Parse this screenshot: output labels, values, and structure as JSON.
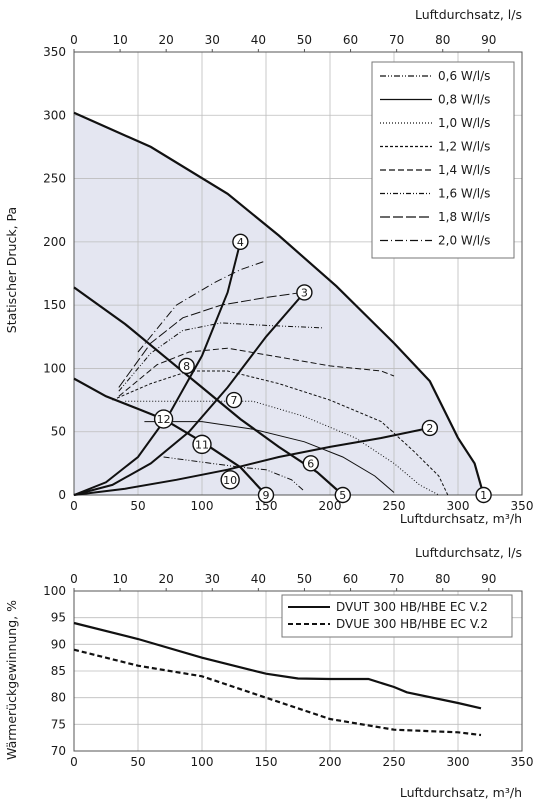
{
  "chart_data": [
    {
      "type": "line",
      "xlabel": "Luftdurchsatz, m³/h",
      "x2label": "Luftdurchsatz, l/s",
      "ylabel": "Statischer Druck, Pa",
      "xlim": [
        0,
        350
      ],
      "x2lim": [
        0,
        97.2
      ],
      "ylim": [
        0,
        350
      ],
      "xticks": [
        "0",
        "50",
        "100",
        "150",
        "200",
        "250",
        "300",
        "350"
      ],
      "x2ticks": [
        "0",
        "10",
        "20",
        "30",
        "40",
        "50",
        "60",
        "70",
        "80",
        "90"
      ],
      "yticks": [
        "0",
        "50",
        "100",
        "150",
        "200",
        "250",
        "300",
        "350"
      ],
      "grid": true,
      "legend_position": "top-right",
      "envelope": [
        [
          0,
          302
        ],
        [
          60,
          275
        ],
        [
          120,
          238
        ],
        [
          160,
          205
        ],
        [
          205,
          165
        ],
        [
          250,
          120
        ],
        [
          278,
          90
        ],
        [
          300,
          45
        ],
        [
          313,
          25
        ],
        [
          320,
          0
        ],
        [
          0,
          0
        ]
      ],
      "fan_curves": [
        {
          "values": [
            [
              0,
              302
            ],
            [
              60,
              275
            ],
            [
              120,
              238
            ],
            [
              160,
              205
            ],
            [
              205,
              165
            ],
            [
              250,
              120
            ],
            [
              278,
              90
            ],
            [
              300,
              45
            ],
            [
              313,
              25
            ],
            [
              320,
              0
            ]
          ]
        },
        {
          "values": [
            [
              0,
              164
            ],
            [
              40,
              135
            ],
            [
              70,
              110
            ],
            [
              100,
              85
            ],
            [
              130,
              60
            ],
            [
              160,
              38
            ],
            [
              190,
              18
            ],
            [
              210,
              0
            ]
          ]
        },
        {
          "values": [
            [
              0,
              92
            ],
            [
              25,
              78
            ],
            [
              50,
              68
            ],
            [
              70,
              60
            ],
            [
              100,
              42
            ],
            [
              130,
              22
            ],
            [
              150,
              0
            ]
          ]
        }
      ],
      "system_curves": [
        {
          "values": [
            [
              0,
              0
            ],
            [
              40,
              5
            ],
            [
              80,
              12
            ],
            [
              120,
              20
            ],
            [
              160,
              30
            ],
            [
              200,
              38
            ],
            [
              240,
              45
            ],
            [
              278,
              53
            ]
          ]
        },
        {
          "values": [
            [
              0,
              0
            ],
            [
              30,
              8
            ],
            [
              60,
              25
            ],
            [
              90,
              50
            ],
            [
              120,
              85
            ],
            [
              150,
              125
            ],
            [
              180,
              160
            ]
          ]
        },
        {
          "values": [
            [
              0,
              0
            ],
            [
              25,
              10
            ],
            [
              50,
              30
            ],
            [
              75,
              65
            ],
            [
              100,
              110
            ],
            [
              120,
              160
            ],
            [
              130,
              200
            ]
          ]
        }
      ],
      "series": [
        {
          "name": "0,6 W/l/s",
          "dash": "6 2 1 2 1 2",
          "values": [
            [
              70,
              30
            ],
            [
              100,
              26
            ],
            [
              130,
              22
            ],
            [
              150,
              20
            ],
            [
              170,
              12
            ],
            [
              180,
              3
            ]
          ]
        },
        {
          "name": "0,8 W/l/s",
          "dash": "",
          "values": [
            [
              55,
              58
            ],
            [
              80,
              58
            ],
            [
              100,
              58
            ],
            [
              140,
              52
            ],
            [
              180,
              42
            ],
            [
              210,
              30
            ],
            [
              235,
              15
            ],
            [
              250,
              2
            ]
          ]
        },
        {
          "name": "1,0 W/l/s",
          "dash": "1 2",
          "values": [
            [
              40,
              74
            ],
            [
              70,
              74
            ],
            [
              100,
              74
            ],
            [
              140,
              74
            ],
            [
              180,
              62
            ],
            [
              220,
              45
            ],
            [
              250,
              25
            ],
            [
              270,
              8
            ],
            [
              285,
              0
            ]
          ]
        },
        {
          "name": "1,2 W/l/s",
          "dash": "3 2",
          "values": [
            [
              30,
              75
            ],
            [
              60,
              88
            ],
            [
              90,
              98
            ],
            [
              120,
              98
            ],
            [
              160,
              88
            ],
            [
              200,
              75
            ],
            [
              240,
              58
            ],
            [
              265,
              35
            ],
            [
              285,
              15
            ],
            [
              292,
              0
            ]
          ]
        },
        {
          "name": "1,4 W/l/s",
          "dash": "6 3",
          "values": [
            [
              35,
              78
            ],
            [
              65,
              103
            ],
            [
              90,
              113
            ],
            [
              120,
              116
            ],
            [
              160,
              109
            ],
            [
              200,
              102
            ],
            [
              240,
              98
            ],
            [
              250,
              94
            ]
          ]
        },
        {
          "name": "1,6 W/l/s",
          "dash": "5 2 1 2 1 2",
          "values": [
            [
              35,
              82
            ],
            [
              60,
              112
            ],
            [
              85,
              130
            ],
            [
              115,
              136
            ],
            [
              150,
              134
            ],
            [
              195,
              132
            ]
          ]
        },
        {
          "name": "1,8 W/l/s",
          "dash": "10 3",
          "values": [
            [
              35,
              85
            ],
            [
              60,
              120
            ],
            [
              85,
              140
            ],
            [
              115,
              150
            ],
            [
              150,
              156
            ],
            [
              178,
              160
            ]
          ]
        },
        {
          "name": "2,0 W/l/s",
          "dash": "8 3 1 3",
          "values": [
            [
              50,
              113
            ],
            [
              80,
              150
            ],
            [
              110,
              168
            ],
            [
              130,
              178
            ],
            [
              150,
              185
            ]
          ]
        }
      ],
      "points": [
        {
          "label": "1",
          "x": 320,
          "y": 0
        },
        {
          "label": "2",
          "x": 278,
          "y": 53
        },
        {
          "label": "3",
          "x": 180,
          "y": 160
        },
        {
          "label": "4",
          "x": 130,
          "y": 200
        },
        {
          "label": "5",
          "x": 210,
          "y": 0
        },
        {
          "label": "6",
          "x": 185,
          "y": 25
        },
        {
          "label": "7",
          "x": 125,
          "y": 75
        },
        {
          "label": "8",
          "x": 88,
          "y": 102
        },
        {
          "label": "9",
          "x": 150,
          "y": 0
        },
        {
          "label": "10",
          "x": 122,
          "y": 12
        },
        {
          "label": "11",
          "x": 100,
          "y": 40
        },
        {
          "label": "12",
          "x": 70,
          "y": 60
        }
      ]
    },
    {
      "type": "line",
      "xlabel": "Luftdurchsatz, m³/h",
      "x2label": "Luftdurchsatz, l/s",
      "ylabel": "Wärmerückgewinnung, %",
      "xlim": [
        0,
        350
      ],
      "x2lim": [
        0,
        97.2
      ],
      "ylim": [
        70,
        100
      ],
      "xticks": [
        "0",
        "50",
        "100",
        "150",
        "200",
        "250",
        "300",
        "350"
      ],
      "x2ticks": [
        "0",
        "10",
        "20",
        "30",
        "40",
        "50",
        "60",
        "70",
        "80",
        "90"
      ],
      "yticks": [
        "70",
        "75",
        "80",
        "85",
        "90",
        "95",
        "100"
      ],
      "grid": true,
      "legend_position": "top-right",
      "series": [
        {
          "name": "DVUT 300 HB/HBE EC V.2",
          "dash": "",
          "values": [
            [
              0,
              94
            ],
            [
              50,
              91
            ],
            [
              100,
              87.5
            ],
            [
              150,
              84.5
            ],
            [
              175,
              83.6
            ],
            [
              200,
              83.5
            ],
            [
              230,
              83.5
            ],
            [
              250,
              82
            ],
            [
              260,
              81
            ],
            [
              300,
              79
            ],
            [
              318,
              78
            ]
          ]
        },
        {
          "name": "DVUE 300 HB/HBE EC V.2",
          "dash": "5 3",
          "values": [
            [
              0,
              89
            ],
            [
              50,
              86
            ],
            [
              100,
              84
            ],
            [
              150,
              80
            ],
            [
              200,
              76
            ],
            [
              250,
              74
            ],
            [
              300,
              73.5
            ],
            [
              318,
              73
            ]
          ]
        }
      ]
    }
  ]
}
